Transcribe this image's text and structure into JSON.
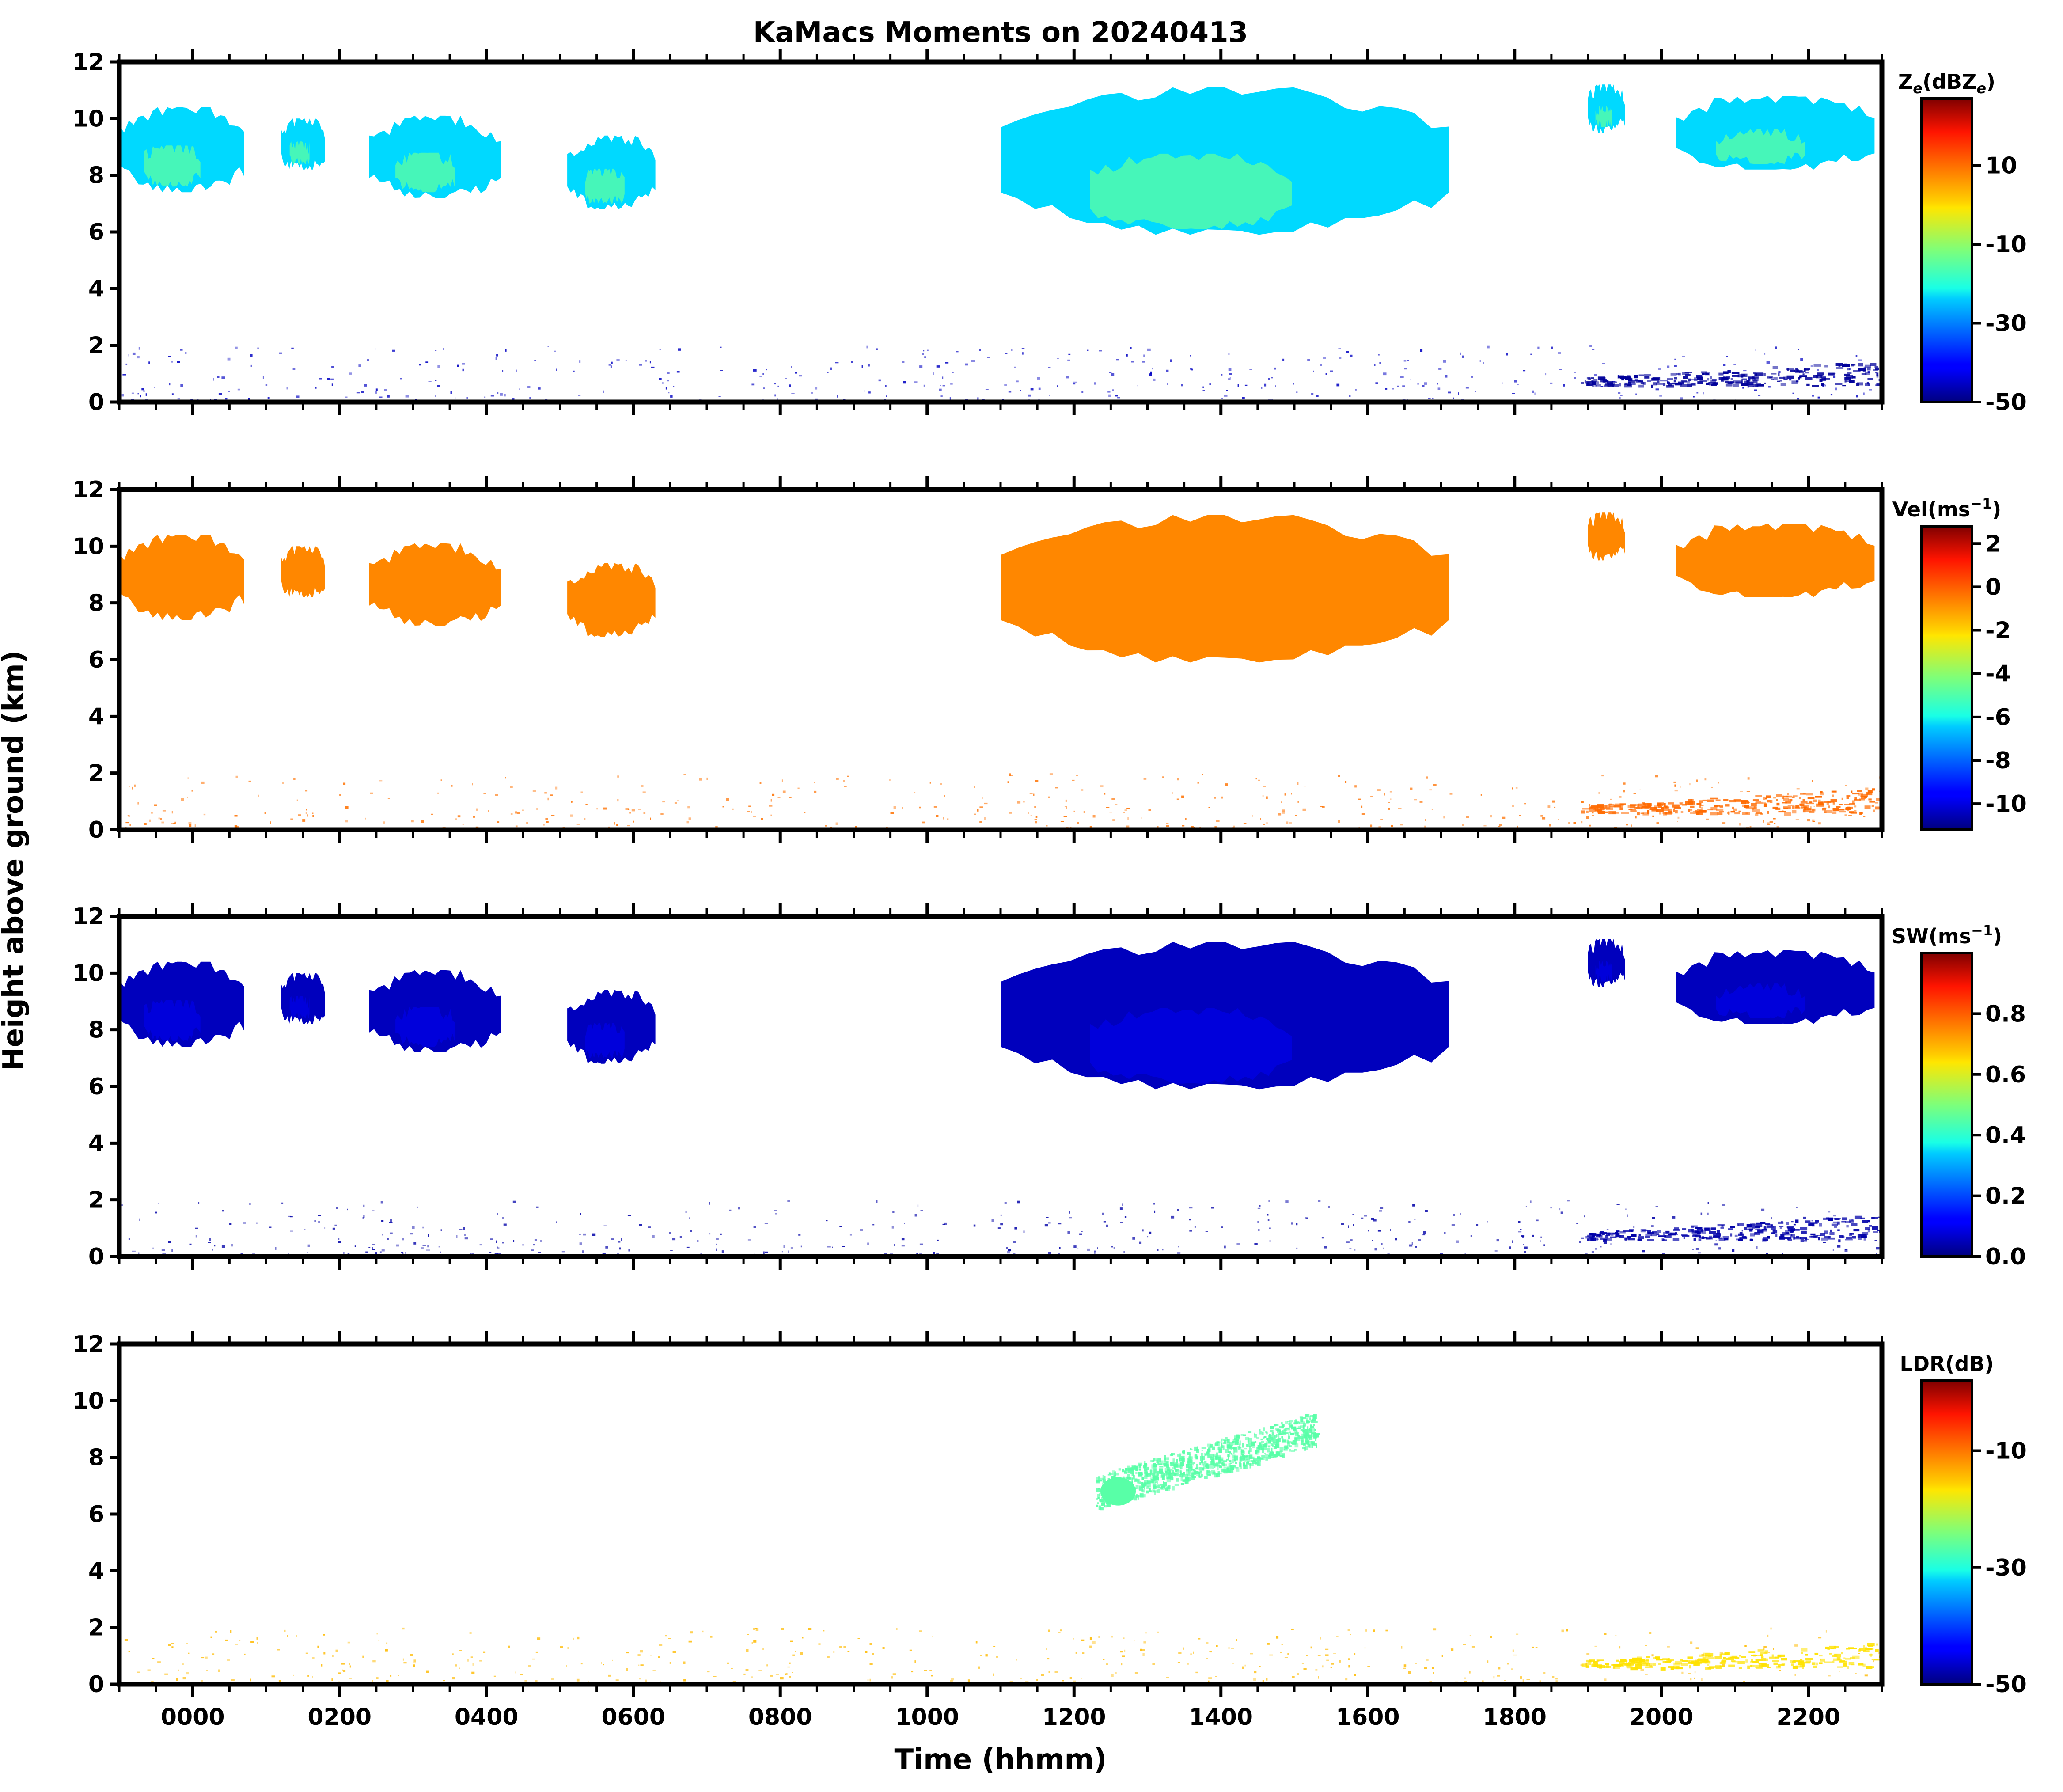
{
  "chart_data": {
    "type": "heatmap",
    "title": "KaMacs Moments on 20240413",
    "xlabel": "Time (hhmm)",
    "ylabel": "Height above ground (km)",
    "x_range_hours": [
      -1.0,
      23.0
    ],
    "x_ticks": [
      {
        "label": "0000",
        "hour": 0
      },
      {
        "label": "0200",
        "hour": 2
      },
      {
        "label": "0400",
        "hour": 4
      },
      {
        "label": "0600",
        "hour": 6
      },
      {
        "label": "0800",
        "hour": 8
      },
      {
        "label": "1000",
        "hour": 10
      },
      {
        "label": "1200",
        "hour": 12
      },
      {
        "label": "1400",
        "hour": 14
      },
      {
        "label": "1600",
        "hour": 16
      },
      {
        "label": "1800",
        "hour": 18
      },
      {
        "label": "2000",
        "hour": 20
      },
      {
        "label": "2200",
        "hour": 22
      }
    ],
    "y_range_km": [
      0,
      12
    ],
    "y_ticks": [
      "0",
      "2",
      "4",
      "6",
      "8",
      "10",
      "12"
    ],
    "panels": [
      {
        "key": "ze",
        "colorbar_label": "Z_e(dBZ_e)",
        "label_main": "Z",
        "label_sub": "e",
        "label_mid": "(dBZ",
        "label_sub2": "e",
        "label_end": ")",
        "vmin": -50,
        "vmax": 27,
        "colorbar_ticks": [
          "10",
          "-10",
          "-30",
          "-50"
        ],
        "colorbar_tick_values": [
          10,
          -10,
          -30,
          -50
        ],
        "echo_value": -24,
        "echo_core_value": -14,
        "low_value": -45,
        "late_low_value": -48
      },
      {
        "key": "vel",
        "colorbar_label": "Vel(ms^-1)",
        "label_main": "Vel(ms",
        "label_sup": "−1",
        "label_end": ")",
        "vmin": -11.2,
        "vmax": 2.8,
        "colorbar_ticks": [
          "2",
          "0",
          "-2",
          "-4",
          "-6",
          "-8",
          "-10"
        ],
        "colorbar_tick_values": [
          2,
          0,
          -2,
          -4,
          -6,
          -8,
          -10
        ],
        "echo_value": -0.8,
        "echo_core_value": -0.8,
        "low_value": -0.5,
        "late_low_value": -0.4
      },
      {
        "key": "sw",
        "colorbar_label": "SW(ms^-1)",
        "label_main": "SW(ms",
        "label_sup": "−1",
        "label_end": ")",
        "vmin": 0.0,
        "vmax": 1.0,
        "colorbar_ticks": [
          "0.8",
          "0.6",
          "0.4",
          "0.2",
          "0.0"
        ],
        "colorbar_tick_values": [
          0.8,
          0.6,
          0.4,
          0.2,
          0.0
        ],
        "echo_value": 0.06,
        "echo_core_value": 0.1,
        "low_value": 0.04,
        "late_low_value": 0.04
      },
      {
        "key": "ldr",
        "colorbar_label": "LDR(dB)",
        "label_main": "LDR(dB)",
        "vmin": -50,
        "vmax": 2,
        "colorbar_ticks": [
          "-10",
          "-30",
          "-50"
        ],
        "colorbar_tick_values": [
          -10,
          -30,
          -50
        ],
        "echo_value": -26,
        "echo_core_value": -26,
        "low_value": -14,
        "late_low_value": -16
      }
    ],
    "echo_regions": [
      {
        "name": "early-cloud",
        "start_hour": -1.0,
        "end_hour": 0.7,
        "base_km": 7.4,
        "top_km": 10.4
      },
      {
        "name": "scattered-0100",
        "start_hour": 1.2,
        "end_hour": 1.8,
        "base_km": 8.2,
        "top_km": 10.0
      },
      {
        "name": "scattered-0300",
        "start_hour": 2.4,
        "end_hour": 4.2,
        "base_km": 7.2,
        "top_km": 10.1
      },
      {
        "name": "cloud-0530",
        "start_hour": 5.1,
        "end_hour": 6.3,
        "base_km": 6.8,
        "top_km": 9.4
      },
      {
        "name": "main-cloud",
        "start_hour": 11.0,
        "end_hour": 17.1,
        "base_km": 5.9,
        "top_km": 11.1
      },
      {
        "name": "fragments-1930",
        "start_hour": 19.0,
        "end_hour": 19.5,
        "base_km": 9.5,
        "top_km": 11.2
      },
      {
        "name": "cloud-2130",
        "start_hour": 20.2,
        "end_hour": 22.9,
        "base_km": 8.2,
        "top_km": 10.8
      }
    ],
    "ldr_echo": {
      "start_hour": 12.3,
      "end_hour": 15.3,
      "base_km": 6.2,
      "top_km": 9.2
    },
    "low_level_clutter_top_km": 2.0,
    "evening_low_layer": {
      "start_hour": 18.9,
      "end_hour": 23.0,
      "base_km": 0.6,
      "top_km": 1.5
    }
  }
}
